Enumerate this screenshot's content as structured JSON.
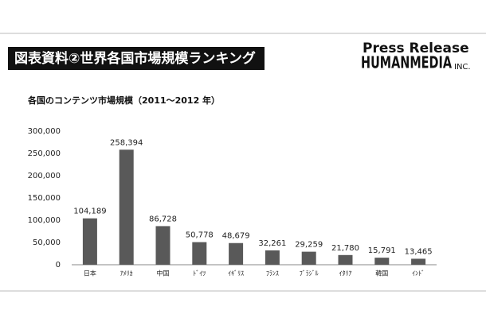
{
  "header": {
    "title": "図表資料②世界各国市場規模ランキング",
    "logo_top": "Press Release",
    "logo_main": "HUMANMEDIA",
    "logo_suffix": "INC."
  },
  "chart_data": {
    "type": "bar",
    "title": "各国のコンテンツ市場規模（2011～2012 年）",
    "categories": [
      "日本",
      "ｱﾒﾘｶ",
      "中国",
      "ﾄﾞｲﾂ",
      "ｲｷﾞﾘｽ",
      "ﾌﾗﾝｽ",
      "ﾌﾞﾗｼﾞﾙ",
      "ｲﾀﾘｱ",
      "韓国",
      "ｲﾝﾄﾞ"
    ],
    "values": [
      104189,
      258394,
      86728,
      50778,
      48679,
      32261,
      29259,
      21780,
      15791,
      13465
    ],
    "value_labels": [
      "104,189",
      "258,394",
      "86,728",
      "50,778",
      "48,679",
      "32,261",
      "29,259",
      "21,780",
      "15,791",
      "13,465"
    ],
    "color": "#595959",
    "ylim": [
      0,
      300000
    ],
    "yticks": [
      0,
      {
        "value": 50000,
        "label": "50,000"
      },
      {
        "value": 100000,
        "label": "100,000"
      },
      {
        "value": 150000,
        "label": "150,000"
      },
      {
        "value": 200000,
        "label": "200,000"
      },
      {
        "value": 250000,
        "label": "250,000"
      },
      {
        "value": 300000,
        "label": "300,000"
      }
    ],
    "grid": false
  }
}
